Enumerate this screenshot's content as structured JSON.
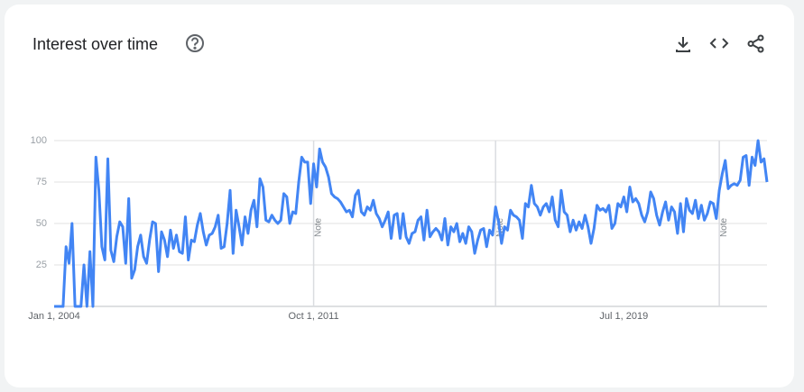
{
  "chart_data": {
    "type": "line",
    "title": "Interest over time",
    "categories": [
      "Jan 1, 2004",
      null,
      null,
      null,
      null,
      null,
      null,
      null,
      null,
      null,
      null,
      null,
      null,
      null,
      null,
      null,
      null,
      null,
      null,
      null,
      null,
      null,
      null,
      null,
      null,
      null,
      null,
      null,
      null,
      null,
      null,
      null,
      null,
      null,
      null,
      null,
      null,
      null,
      null,
      null,
      null,
      null,
      null,
      null,
      null,
      null,
      null,
      null,
      null,
      null,
      null,
      null,
      null,
      null,
      null,
      null,
      null,
      null,
      null,
      null,
      null,
      null,
      null,
      null,
      null,
      null,
      null,
      null,
      null,
      null,
      null,
      null,
      null,
      null,
      null,
      null,
      null,
      null,
      null,
      null,
      null,
      null,
      null,
      null,
      null,
      null,
      null,
      "Oct 1, 2011",
      null,
      null,
      null,
      null,
      null,
      null,
      null,
      null,
      null,
      null,
      null,
      null,
      null,
      null,
      null,
      null,
      null,
      null,
      null,
      null,
      null,
      null,
      null,
      null,
      null,
      null,
      null,
      null,
      null,
      null,
      null,
      null,
      null,
      null,
      null,
      null,
      null,
      null,
      null,
      null,
      null,
      null,
      null,
      null,
      null,
      null,
      null,
      null,
      null,
      null,
      null,
      null,
      null,
      null,
      null,
      null,
      null,
      null,
      null,
      null,
      null,
      null,
      null,
      null,
      null,
      null,
      null,
      null,
      null,
      null,
      null,
      null,
      null,
      null,
      null,
      null,
      null,
      null,
      null,
      null,
      null,
      null,
      null,
      null,
      null,
      null,
      null,
      null,
      null,
      null,
      null,
      null,
      null,
      null,
      null,
      null,
      null,
      null,
      null,
      null,
      null,
      null,
      null,
      "Jul 1, 2019",
      null,
      null,
      null,
      null,
      null,
      null,
      null,
      null,
      null,
      null,
      null,
      null,
      null,
      null,
      null,
      null,
      null,
      null,
      null,
      null,
      null,
      null,
      null,
      null,
      null,
      null,
      null,
      null,
      null,
      null,
      null,
      null,
      null,
      null,
      null,
      null,
      null,
      null,
      null,
      null,
      null,
      null,
      null,
      null,
      null,
      null,
      null,
      null
    ],
    "values": [
      0,
      0,
      0,
      0,
      36,
      26,
      50,
      0,
      0,
      0,
      25,
      0,
      33,
      0,
      90,
      70,
      36,
      28,
      89,
      34,
      27,
      42,
      51,
      48,
      26,
      65,
      17,
      22,
      36,
      43,
      30,
      26,
      40,
      51,
      50,
      21,
      45,
      40,
      30,
      46,
      35,
      43,
      33,
      32,
      54,
      28,
      40,
      39,
      49,
      56,
      45,
      37,
      43,
      44,
      48,
      55,
      35,
      36,
      50,
      70,
      32,
      58,
      48,
      37,
      54,
      44,
      58,
      64,
      48,
      77,
      72,
      52,
      51,
      55,
      52,
      50,
      52,
      68,
      66,
      50,
      57,
      56,
      75,
      90,
      87,
      87,
      62,
      86,
      72,
      95,
      87,
      84,
      78,
      68,
      66,
      65,
      63,
      60,
      57,
      58,
      54,
      67,
      70,
      57,
      55,
      60,
      58,
      64,
      56,
      53,
      48,
      52,
      57,
      41,
      55,
      56,
      41,
      56,
      42,
      38,
      44,
      45,
      52,
      54,
      40,
      58,
      42,
      45,
      47,
      45,
      40,
      53,
      37,
      48,
      45,
      50,
      39,
      44,
      38,
      48,
      45,
      32,
      40,
      46,
      47,
      36,
      46,
      43,
      60,
      51,
      38,
      48,
      46,
      58,
      55,
      54,
      52,
      41,
      62,
      60,
      73,
      62,
      60,
      55,
      60,
      62,
      57,
      66,
      52,
      48,
      70,
      57,
      55,
      45,
      52,
      46,
      51,
      47,
      55,
      48,
      38,
      47,
      61,
      58,
      59,
      57,
      61,
      47,
      50,
      62,
      60,
      66,
      57,
      72,
      63,
      65,
      62,
      55,
      51,
      57,
      69,
      65,
      55,
      49,
      57,
      63,
      52,
      60,
      57,
      44,
      62,
      45,
      65,
      58,
      56,
      64,
      53,
      61,
      52,
      56,
      63,
      62,
      53,
      70,
      80,
      88,
      71,
      73,
      74,
      73,
      76,
      90,
      91,
      73,
      90,
      85,
      100,
      87,
      89,
      75
    ],
    "color": "#4285f4",
    "ylim": [
      0,
      100
    ],
    "yticks": [
      25,
      50,
      75,
      100
    ],
    "grid": true,
    "notes": [
      {
        "index": 87,
        "label": "Note"
      },
      {
        "index": 148,
        "label": "Note"
      },
      {
        "index": 223,
        "label": "Note"
      }
    ]
  }
}
